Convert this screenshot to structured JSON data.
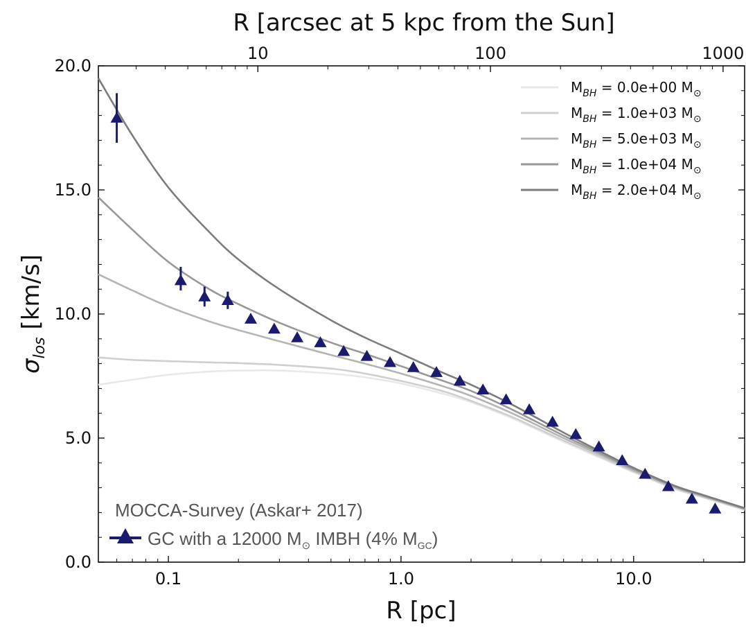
{
  "chart_data": {
    "type": "line",
    "title": "",
    "xlabel": "R [pc]",
    "ylabel": "σ_los [km/s]",
    "ylabel_symbol": "σ",
    "ylabel_sub": "los",
    "ylabel_unit": "[km/s]",
    "x_scale": "log",
    "xlim": [
      0.05,
      30
    ],
    "ylim": [
      0,
      20
    ],
    "x_ticks": [
      {
        "value": 0.1,
        "label": "0.1"
      },
      {
        "value": 1.0,
        "label": "1.0"
      },
      {
        "value": 10.0,
        "label": "10.0"
      }
    ],
    "y_ticks": [
      {
        "value": 0,
        "label": "0.0"
      },
      {
        "value": 5,
        "label": "5.0"
      },
      {
        "value": 10,
        "label": "10.0"
      },
      {
        "value": 15,
        "label": "15.0"
      },
      {
        "value": 20,
        "label": "20.0"
      }
    ],
    "top_axis": {
      "label": "R [arcsec at 5 kpc from the Sun]",
      "ticks": [
        {
          "value": 10,
          "label": "10"
        },
        {
          "value": 100,
          "label": "100"
        },
        {
          "value": 1000,
          "label": "1000"
        }
      ]
    },
    "grid": false,
    "legend_position": "top-right",
    "series": [
      {
        "name": "M_BH = 0.0e+00 M_⊙",
        "legend_math": "M",
        "legend_sub": "BH",
        "legend_value": " = 0.0e+00 M",
        "legend_unit_sub": "⊙",
        "color": "#e8e8e8",
        "x": [
          0.05,
          0.07,
          0.1,
          0.15,
          0.2,
          0.3,
          0.5,
          0.7,
          1.0,
          1.5,
          2,
          3,
          5,
          7,
          10,
          15,
          20,
          30
        ],
        "values": [
          7.15,
          7.35,
          7.55,
          7.68,
          7.72,
          7.72,
          7.6,
          7.45,
          7.2,
          6.8,
          6.45,
          5.8,
          4.85,
          4.25,
          3.62,
          2.95,
          2.6,
          2.1
        ]
      },
      {
        "name": "M_BH = 1.0e+03 M_⊙",
        "legend_math": "M",
        "legend_sub": "BH",
        "legend_value": " = 1.0e+03 M",
        "legend_unit_sub": "⊙",
        "color": "#cfcfcf",
        "x": [
          0.05,
          0.07,
          0.1,
          0.15,
          0.2,
          0.3,
          0.5,
          0.7,
          1.0,
          1.5,
          2,
          3,
          5,
          7,
          10,
          15,
          20,
          30
        ],
        "values": [
          8.25,
          8.15,
          8.1,
          8.05,
          8.02,
          7.95,
          7.8,
          7.6,
          7.3,
          6.9,
          6.5,
          5.85,
          4.9,
          4.3,
          3.65,
          2.98,
          2.62,
          2.12
        ]
      },
      {
        "name": "M_BH = 5.0e+03 M_⊙",
        "legend_math": "M",
        "legend_sub": "BH",
        "legend_value": " = 5.0e+03 M",
        "legend_unit_sub": "⊙",
        "color": "#b4b4b4",
        "x": [
          0.05,
          0.07,
          0.1,
          0.15,
          0.2,
          0.3,
          0.5,
          0.7,
          1.0,
          1.5,
          2,
          3,
          5,
          7,
          10,
          15,
          20,
          30
        ],
        "values": [
          11.6,
          10.95,
          10.3,
          9.7,
          9.35,
          8.9,
          8.35,
          8.0,
          7.6,
          7.1,
          6.7,
          6.0,
          5.0,
          4.38,
          3.7,
          3.02,
          2.65,
          2.14
        ]
      },
      {
        "name": "M_BH = 1.0e+04 M_⊙",
        "legend_math": "M",
        "legend_sub": "BH",
        "legend_value": " = 1.0e+04 M",
        "legend_unit_sub": "⊙",
        "color": "#989898",
        "x": [
          0.05,
          0.07,
          0.1,
          0.15,
          0.2,
          0.3,
          0.5,
          0.7,
          1.0,
          1.5,
          2,
          3,
          5,
          7,
          10,
          15,
          20,
          30
        ],
        "values": [
          14.7,
          13.4,
          12.1,
          11.0,
          10.4,
          9.65,
          8.85,
          8.4,
          7.9,
          7.32,
          6.9,
          6.15,
          5.1,
          4.45,
          3.75,
          3.05,
          2.68,
          2.16
        ]
      },
      {
        "name": "M_BH = 2.0e+04 M_⊙",
        "legend_math": "M",
        "legend_sub": "BH",
        "legend_value": " = 2.0e+04 M",
        "legend_unit_sub": "⊙",
        "color": "#7c7c7c",
        "x": [
          0.05,
          0.07,
          0.1,
          0.15,
          0.2,
          0.3,
          0.5,
          0.7,
          1.0,
          1.5,
          2,
          3,
          5,
          7,
          10,
          15,
          20,
          30
        ],
        "values": [
          19.5,
          17.2,
          15.1,
          13.3,
          12.2,
          11.0,
          9.75,
          9.05,
          8.4,
          7.65,
          7.15,
          6.35,
          5.22,
          4.52,
          3.8,
          3.08,
          2.7,
          2.18
        ]
      }
    ],
    "observed": {
      "name": "GC with a 12000 M_⊙ IMBH (4% M_GC)",
      "color": "#1a1a6e",
      "x": [
        0.06,
        0.113,
        0.143,
        0.18,
        0.226,
        0.285,
        0.358,
        0.45,
        0.567,
        0.713,
        0.897,
        1.13,
        1.42,
        1.79,
        2.25,
        2.83,
        3.56,
        4.48,
        5.64,
        7.09,
        8.93,
        11.2,
        14.1,
        17.8,
        22.4
      ],
      "values": [
        17.9,
        11.35,
        10.7,
        10.55,
        9.8,
        9.4,
        9.05,
        8.85,
        8.5,
        8.3,
        8.05,
        7.85,
        7.65,
        7.3,
        6.95,
        6.55,
        6.15,
        5.65,
        5.15,
        4.65,
        4.1,
        3.55,
        3.05,
        2.55,
        2.15
      ],
      "err_low": [
        16.9,
        10.95,
        10.3,
        10.2,
        null,
        null,
        null,
        null,
        null,
        null,
        null,
        null,
        null,
        null,
        null,
        null,
        null,
        null,
        null,
        null,
        null,
        null,
        null,
        null,
        null
      ],
      "err_high": [
        18.9,
        11.9,
        11.1,
        10.9,
        null,
        null,
        null,
        null,
        null,
        null,
        null,
        null,
        null,
        null,
        null,
        null,
        null,
        null,
        null,
        null,
        null,
        null,
        null,
        null,
        null
      ]
    },
    "annotation": {
      "survey": "MOCCA-Survey (Askar+ 2017)",
      "marker_label_main": "GC with a 12000 M",
      "marker_label_sun": "⊙",
      "marker_label_rest": " IMBH (4% M",
      "marker_label_sub": "GC",
      "marker_label_end": ")"
    }
  }
}
